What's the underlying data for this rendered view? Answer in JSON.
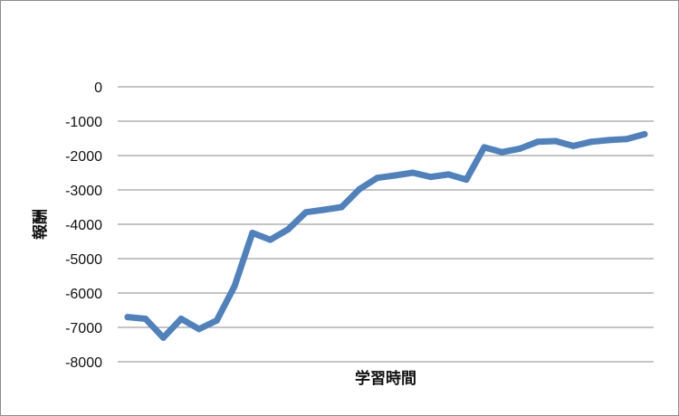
{
  "chart_data": {
    "type": "line",
    "title": "",
    "xlabel": "学習時間",
    "ylabel": "報酬",
    "ylim": [
      -8000,
      0
    ],
    "yticks": [
      0,
      -1000,
      -2000,
      -3000,
      -4000,
      -5000,
      -6000,
      -7000,
      -8000
    ],
    "ytick_labels": [
      "0",
      "-1000",
      "-2000",
      "-3000",
      "-4000",
      "-5000",
      "-6000",
      "-7000",
      "-8000"
    ],
    "grid": true,
    "legend": "none",
    "line_color": "#4f81bd",
    "x": [
      1,
      2,
      3,
      4,
      5,
      6,
      7,
      8,
      9,
      10,
      11,
      12,
      13,
      14,
      15,
      16,
      17,
      18,
      19,
      20,
      21,
      22,
      23,
      24,
      25,
      26,
      27,
      28,
      29,
      30
    ],
    "series": [
      {
        "values": [
          -6700,
          -6750,
          -7300,
          -6750,
          -7050,
          -6800,
          -5800,
          -4250,
          -4450,
          -4150,
          -3650,
          -3580,
          -3500,
          -2980,
          -2650,
          -2580,
          -2500,
          -2620,
          -2550,
          -2700,
          -1760,
          -1900,
          -1800,
          -1600,
          -1580,
          -1720,
          -1600,
          -1550,
          -1520,
          -1380
        ]
      }
    ]
  }
}
